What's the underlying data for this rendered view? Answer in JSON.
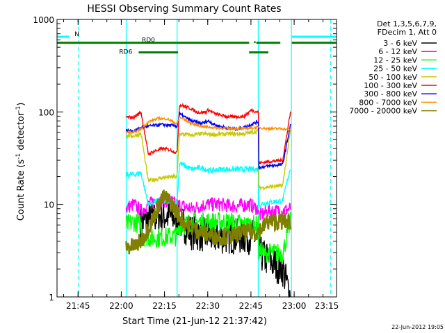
{
  "chart_data": {
    "type": "line",
    "title": "HESSI Observing Summary Count Rates",
    "xlabel": "Start Time (21-Jun-12 21:37:42)",
    "ylabel_main": "Count Rate (s",
    "ylabel_exp1": "-1",
    "ylabel_mid": " detector",
    "ylabel_exp2": "-1",
    "ylabel_end": ")",
    "yscale": "log",
    "xlim": [
      0,
      5820
    ],
    "ylim": [
      1,
      1000
    ],
    "x_units": "seconds since start time",
    "x_ticks": [
      {
        "t": 438,
        "label": "21:45"
      },
      {
        "t": 1338,
        "label": "22:00"
      },
      {
        "t": 2238,
        "label": "22:15"
      },
      {
        "t": 3138,
        "label": "22:30"
      },
      {
        "t": 4038,
        "label": "22:45"
      },
      {
        "t": 4938,
        "label": "23:00"
      },
      {
        "t": 5838,
        "label": "23:15"
      }
    ],
    "y_ticks": [
      {
        "v": 1,
        "label": "1"
      },
      {
        "v": 10,
        "label": "10"
      },
      {
        "v": 100,
        "label": "100"
      },
      {
        "v": 1000,
        "label": "1000"
      }
    ],
    "legend_header": [
      "Det 1,3,5,6,7,9,",
      "FDecim 1, Att 0"
    ],
    "legend_position": "top-right, outside plot",
    "series": [
      {
        "name": "3 - 6 keV",
        "color": "#000000",
        "points": [
          [
            1740,
            6
          ],
          [
            1900,
            7
          ],
          [
            2100,
            7.5
          ],
          [
            2300,
            7.5
          ],
          [
            2500,
            7
          ],
          [
            2800,
            5
          ],
          [
            3200,
            4.5
          ],
          [
            3600,
            4.5
          ],
          [
            3900,
            4.5
          ],
          [
            4170,
            4.5
          ],
          [
            4200,
            3
          ],
          [
            4400,
            2.5
          ],
          [
            4700,
            2
          ],
          [
            4860,
            1
          ]
        ]
      },
      {
        "name": "6 - 12 keV",
        "color": "#ff00ff",
        "points": [
          [
            1440,
            9
          ],
          [
            1500,
            9.5
          ],
          [
            1600,
            10
          ],
          [
            1750,
            8.5
          ],
          [
            1900,
            10
          ],
          [
            2100,
            11
          ],
          [
            2300,
            11
          ],
          [
            2500,
            10
          ],
          [
            2800,
            9
          ],
          [
            3100,
            10
          ],
          [
            3400,
            10
          ],
          [
            3700,
            9.5
          ],
          [
            4000,
            10
          ],
          [
            4170,
            9
          ],
          [
            4200,
            7.5
          ],
          [
            4400,
            8.5
          ],
          [
            4700,
            8.5
          ],
          [
            4860,
            9
          ]
        ]
      },
      {
        "name": "12 - 25 keV",
        "color": "#00ff00",
        "points": [
          [
            1440,
            6
          ],
          [
            1600,
            6.5
          ],
          [
            1750,
            6
          ],
          [
            1800,
            4.5
          ],
          [
            2000,
            4.3
          ],
          [
            2300,
            4.5
          ],
          [
            2500,
            4.5
          ],
          [
            2550,
            5.8
          ],
          [
            2800,
            6.5
          ],
          [
            3200,
            6.5
          ],
          [
            3600,
            6.5
          ],
          [
            3900,
            6
          ],
          [
            4170,
            6
          ],
          [
            4200,
            3
          ],
          [
            4400,
            3
          ],
          [
            4700,
            3
          ],
          [
            4860,
            6.5
          ]
        ]
      },
      {
        "name": "25 - 50 keV",
        "color": "#00ffff",
        "points": [
          [
            1440,
            21
          ],
          [
            1600,
            21
          ],
          [
            1750,
            22
          ],
          [
            1900,
            10
          ],
          [
            2100,
            11
          ],
          [
            2300,
            10.5
          ],
          [
            2500,
            10.5
          ],
          [
            2550,
            28
          ],
          [
            2800,
            24
          ],
          [
            3000,
            25
          ],
          [
            3200,
            23
          ],
          [
            3400,
            24
          ],
          [
            3600,
            24
          ],
          [
            3900,
            24
          ],
          [
            4170,
            24
          ],
          [
            4200,
            10
          ],
          [
            4400,
            10.5
          ],
          [
            4700,
            11
          ],
          [
            4860,
            25
          ]
        ]
      },
      {
        "name": "50 - 100 keV",
        "color": "#c8c800",
        "points": [
          [
            1440,
            55
          ],
          [
            1600,
            55
          ],
          [
            1750,
            58
          ],
          [
            1900,
            18
          ],
          [
            2200,
            19.5
          ],
          [
            2500,
            20
          ],
          [
            2550,
            58
          ],
          [
            2800,
            56
          ],
          [
            3000,
            58
          ],
          [
            3300,
            57
          ],
          [
            3600,
            58
          ],
          [
            3900,
            58
          ],
          [
            4170,
            62
          ],
          [
            4200,
            15
          ],
          [
            4400,
            15.5
          ],
          [
            4700,
            16
          ],
          [
            4860,
            63
          ]
        ]
      },
      {
        "name": "100 - 300 keV",
        "color": "#ff0000",
        "points": [
          [
            1440,
            88
          ],
          [
            1600,
            87
          ],
          [
            1750,
            100
          ],
          [
            1900,
            35
          ],
          [
            2050,
            38
          ],
          [
            2200,
            40
          ],
          [
            2350,
            39
          ],
          [
            2500,
            36
          ],
          [
            2550,
            120
          ],
          [
            2800,
            108
          ],
          [
            2900,
            100
          ],
          [
            3000,
            98
          ],
          [
            3100,
            100
          ],
          [
            3150,
            105
          ],
          [
            3300,
            95
          ],
          [
            3500,
            90
          ],
          [
            3650,
            88
          ],
          [
            3900,
            90
          ],
          [
            4050,
            105
          ],
          [
            4170,
            100
          ],
          [
            4200,
            28
          ],
          [
            4400,
            29
          ],
          [
            4700,
            30
          ],
          [
            4860,
            100
          ]
        ]
      },
      {
        "name": "300 - 800 keV",
        "color": "#0000ff",
        "points": [
          [
            1440,
            63
          ],
          [
            1600,
            62
          ],
          [
            1750,
            68
          ],
          [
            1900,
            70
          ],
          [
            2200,
            73
          ],
          [
            2500,
            70
          ],
          [
            2550,
            95
          ],
          [
            2800,
            80
          ],
          [
            3000,
            75
          ],
          [
            3150,
            80
          ],
          [
            3300,
            72
          ],
          [
            3500,
            68
          ],
          [
            3700,
            65
          ],
          [
            3900,
            68
          ],
          [
            4170,
            78
          ],
          [
            4200,
            25
          ],
          [
            4400,
            26
          ],
          [
            4700,
            27
          ],
          [
            4860,
            72
          ]
        ]
      },
      {
        "name": "800 - 7000 keV",
        "color": "#ff8c00",
        "points": [
          [
            1440,
            60
          ],
          [
            1600,
            60
          ],
          [
            1750,
            65
          ],
          [
            1900,
            78
          ],
          [
            2100,
            85
          ],
          [
            2300,
            84
          ],
          [
            2500,
            74
          ],
          [
            2550,
            88
          ],
          [
            2800,
            75
          ],
          [
            3000,
            70
          ],
          [
            3200,
            68
          ],
          [
            3400,
            67
          ],
          [
            3600,
            66
          ],
          [
            3900,
            66
          ],
          [
            4170,
            68
          ],
          [
            4400,
            66
          ],
          [
            4700,
            66
          ],
          [
            4860,
            63
          ]
        ]
      },
      {
        "name": "7000 - 20000 keV",
        "color": "#808000",
        "points": [
          [
            1440,
            3.5
          ],
          [
            1600,
            3.5
          ],
          [
            1750,
            4
          ],
          [
            1900,
            5.5
          ],
          [
            2050,
            8
          ],
          [
            2150,
            11
          ],
          [
            2250,
            12
          ],
          [
            2400,
            10
          ],
          [
            2500,
            8
          ],
          [
            2700,
            6
          ],
          [
            3000,
            5
          ],
          [
            3300,
            4.5
          ],
          [
            3600,
            4.5
          ],
          [
            3900,
            5
          ],
          [
            4170,
            5
          ],
          [
            4400,
            6.5
          ],
          [
            4700,
            6.5
          ],
          [
            4860,
            6.5
          ]
        ]
      }
    ],
    "mode_bars": [
      {
        "label": "N",
        "color": "#00ffff",
        "start": 0,
        "end": 250,
        "level": 650
      },
      {
        "label": "",
        "color": "#00ffff",
        "start": 4890,
        "end": 5820,
        "level": 650
      },
      {
        "label": "RD0",
        "color": "#008000",
        "start": 0,
        "end": 4000,
        "level": 560
      },
      {
        "label": "",
        "color": "#008000",
        "start": 4150,
        "end": 4650,
        "level": 560
      },
      {
        "label": "",
        "color": "#008000",
        "start": 4890,
        "end": 5820,
        "level": 560
      },
      {
        "label": "RD6",
        "color": "#008000",
        "start": 1700,
        "end": 2520,
        "level": 440
      },
      {
        "label": "",
        "color": "#008000",
        "start": 4000,
        "end": 4400,
        "level": 440
      }
    ],
    "vlines": [
      {
        "t": 1440,
        "color": "#00ffff",
        "style": "solid"
      },
      {
        "t": 2500,
        "color": "#00ffff",
        "style": "solid"
      },
      {
        "t": 4190,
        "color": "#00ffff",
        "style": "solid"
      },
      {
        "t": 4880,
        "color": "#00ffff",
        "style": "solid"
      },
      {
        "t": 450,
        "color": "#00ffff",
        "style": "dashed"
      },
      {
        "t": 5700,
        "color": "#00ffff",
        "style": "dashed"
      }
    ],
    "footer_date": "22-Jun-2012 19:05",
    "grid": false
  }
}
